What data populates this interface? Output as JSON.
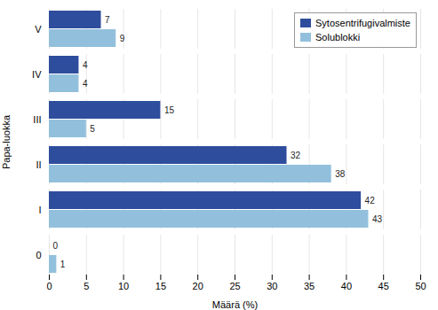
{
  "chart_data": {
    "type": "bar",
    "orientation": "horizontal",
    "categories": [
      "0",
      "I",
      "II",
      "III",
      "IV",
      "V"
    ],
    "series": [
      {
        "name": "Sytosentrifugivalmiste",
        "color": "#2E4D9C",
        "values": [
          0,
          42,
          32,
          15,
          4,
          7
        ]
      },
      {
        "name": "Solublokki",
        "color": "#92C0DC",
        "values": [
          1,
          43,
          38,
          5,
          4,
          9
        ]
      }
    ],
    "xlabel": "Määrä (%)",
    "ylabel": "Papa-luokka",
    "xlim": [
      0,
      50
    ],
    "xticks": [
      0,
      5,
      10,
      15,
      20,
      25,
      30,
      35,
      40,
      45,
      50
    ],
    "grid": true,
    "legend": "upper right",
    "data_labels": true
  }
}
